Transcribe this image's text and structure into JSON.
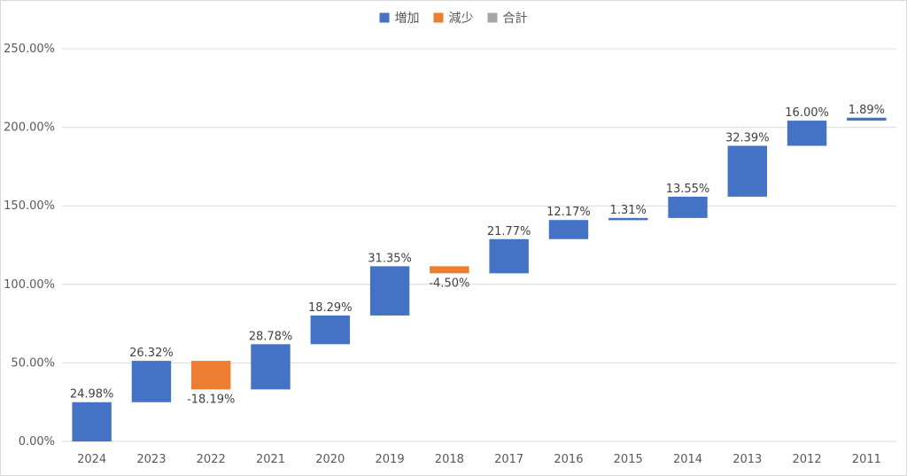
{
  "chart_data": {
    "type": "waterfall",
    "title": "",
    "xlabel": "",
    "ylabel": "",
    "legend": {
      "position": "top",
      "entries": [
        {
          "name": "増加",
          "color": "#4472C4"
        },
        {
          "name": "減少",
          "color": "#ED7D31"
        },
        {
          "name": "合計",
          "color": "#A5A5A5"
        }
      ]
    },
    "categories": [
      "2024",
      "2023",
      "2022",
      "2021",
      "2020",
      "2019",
      "2018",
      "2017",
      "2016",
      "2015",
      "2014",
      "2013",
      "2012",
      "2011"
    ],
    "values": [
      24.98,
      26.32,
      -18.19,
      28.78,
      18.29,
      31.35,
      -4.5,
      21.77,
      12.17,
      1.31,
      13.55,
      32.39,
      16.0,
      1.89
    ],
    "value_labels": [
      "24.98%",
      "26.32%",
      "-18.19%",
      "28.78%",
      "18.29%",
      "31.35%",
      "-4.50%",
      "21.77%",
      "12.17%",
      "1.31%",
      "13.55%",
      "32.39%",
      "16.00%",
      "1.89%"
    ],
    "ylim": [
      0,
      250
    ],
    "yticks": [
      0,
      50,
      100,
      150,
      200,
      250
    ],
    "ytick_labels": [
      "0.00%",
      "50.00%",
      "100.00%",
      "150.00%",
      "200.00%",
      "250.00%"
    ],
    "grid": true,
    "colors": {
      "increase": "#4472C4",
      "decrease": "#ED7D31",
      "total": "#A5A5A5"
    }
  }
}
